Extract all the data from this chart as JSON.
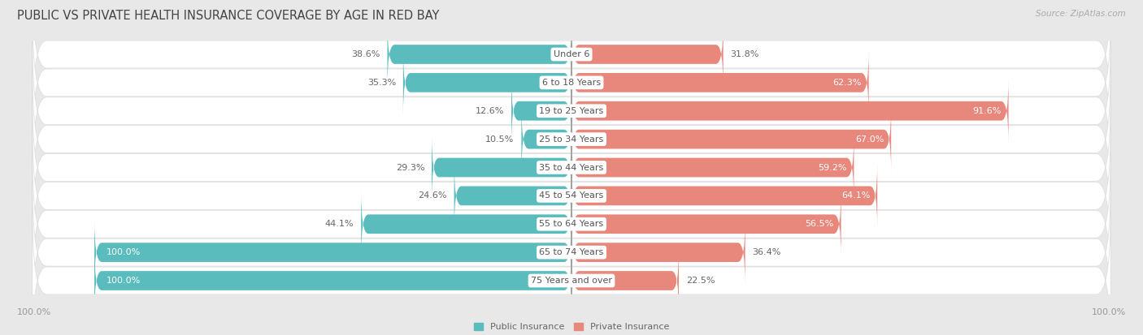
{
  "title": "PUBLIC VS PRIVATE HEALTH INSURANCE COVERAGE BY AGE IN RED BAY",
  "source": "Source: ZipAtlas.com",
  "categories": [
    "Under 6",
    "6 to 18 Years",
    "19 to 25 Years",
    "25 to 34 Years",
    "35 to 44 Years",
    "45 to 54 Years",
    "55 to 64 Years",
    "65 to 74 Years",
    "75 Years and over"
  ],
  "public_values": [
    38.6,
    35.3,
    12.6,
    10.5,
    29.3,
    24.6,
    44.1,
    100.0,
    100.0
  ],
  "private_values": [
    31.8,
    62.3,
    91.6,
    67.0,
    59.2,
    64.1,
    56.5,
    36.4,
    22.5
  ],
  "public_color": "#5bbcbe",
  "private_color": "#e8877c",
  "background_color": "#e8e8e8",
  "row_bg": "#f5f5f5",
  "label_color_dark": "#666666",
  "label_color_white": "#ffffff",
  "max_value": 100.0,
  "x_axis_left_label": "100.0%",
  "x_axis_right_label": "100.0%",
  "title_fontsize": 10.5,
  "label_fontsize": 8,
  "category_fontsize": 8,
  "legend_fontsize": 8,
  "source_fontsize": 7.5
}
